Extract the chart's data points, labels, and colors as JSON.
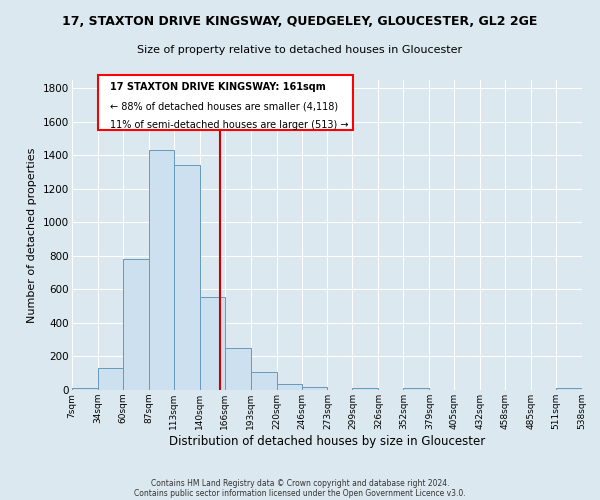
{
  "title_line1": "17, STAXTON DRIVE KINGSWAY, QUEDGELEY, GLOUCESTER, GL2 2GE",
  "title_line2": "Size of property relative to detached houses in Gloucester",
  "xlabel": "Distribution of detached houses by size in Gloucester",
  "ylabel": "Number of detached properties",
  "bin_edges": [
    7,
    34,
    60,
    87,
    113,
    140,
    166,
    193,
    220,
    246,
    273,
    299,
    326,
    352,
    379,
    405,
    432,
    458,
    485,
    511,
    538
  ],
  "bar_heights": [
    10,
    130,
    780,
    1430,
    1340,
    555,
    250,
    110,
    35,
    20,
    0,
    10,
    0,
    10,
    0,
    0,
    0,
    0,
    0,
    10
  ],
  "bar_color": "#cce0f0",
  "bar_edge_color": "#6699bb",
  "vline_x": 161,
  "vline_color": "#cc0000",
  "ylim": [
    0,
    1850
  ],
  "yticks": [
    0,
    200,
    400,
    600,
    800,
    1000,
    1200,
    1400,
    1600,
    1800
  ],
  "annotation_box_text_line1": "17 STAXTON DRIVE KINGSWAY: 161sqm",
  "annotation_box_text_line2": "← 88% of detached houses are smaller (4,118)",
  "annotation_box_text_line3": "11% of semi-detached houses are larger (513) →",
  "footer_line1": "Contains HM Land Registry data © Crown copyright and database right 2024.",
  "footer_line2": "Contains public sector information licensed under the Open Government Licence v3.0.",
  "background_color": "#dce8f0",
  "plot_background_color": "#dce8f0"
}
